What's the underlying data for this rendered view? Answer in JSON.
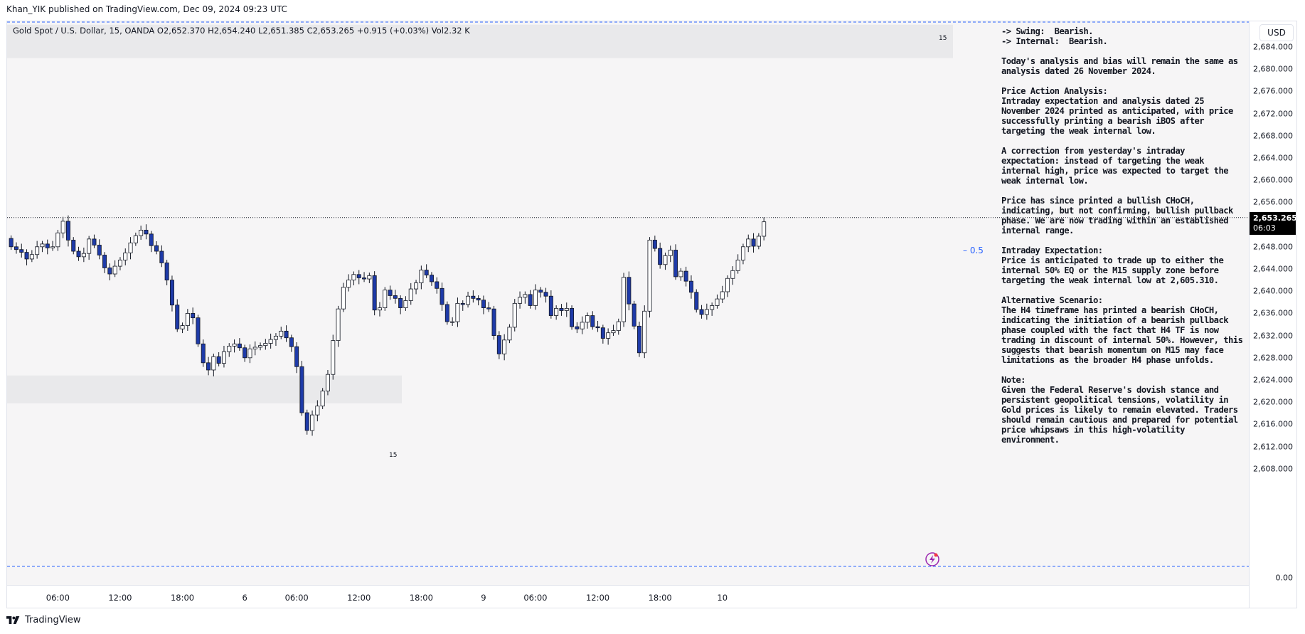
{
  "header": {
    "published": "Khan_YIK published on TradingView.com, Dec 09, 2024 09:23 UTC"
  },
  "symbol_line": "Gold Spot / U.S. Dollar, 15, OANDA  O2,652.370  H2,654.240  L2,651.385  C2,653.265  +0.915 (+0.03%)  Vol2.32 K",
  "currency": "USD",
  "last_price": {
    "price": "2,653.265",
    "countdown": "06:03"
  },
  "fib_label": "0.5",
  "zone_labels": [
    "15",
    "15"
  ],
  "footer": {
    "logo_text": "TradingView"
  },
  "colors": {
    "up": "#ffffff",
    "down": "#1e3aa8",
    "wick": "#131722",
    "zone": "#e9e9eb",
    "dashed": "#2962ff",
    "background": "#f6f5f6"
  },
  "analysis_text": "-> Swing:  Bearish.\n-> Internal:  Bearish.\n\nToday's analysis and bias will remain the same as analysis dated 26 November 2024.\n\nPrice Action Analysis:\nIntraday expectation and analysis dated 25 November 2024 printed as anticipated, with price successfully printing a bearish iBOS after targeting the weak internal low.\n\nA correction from yesterday's intraday expectation: instead of targeting the weak internal high, price was expected to target the weak internal low.\n\nPrice has since printed a bullish CHoCH, indicating, but not confirming, bullish pullback phase. We are now trading within an established internal range.\n\nIntraday Expectation:\nPrice is anticipated to trade up to either the internal 50% EQ or the M15 supply zone before targeting the weak internal low at 2,605.310.\n\nAlternative Scenario:\nThe H4 timeframe has printed a bearish CHoCH, indicating the initiation of a bearish pullback phase coupled with the fact that H4 TF is now trading in discount of internal 50%. However, this suggests that bearish momentum on M15 may face limitations as the broader H4 phase unfolds.\n\nNote:\nGiven the Federal Reserve's dovish stance and persistent geopolitical tensions, volatility in Gold prices is likely to remain elevated. Traders should remain cautious and prepared for potential price whipsaws in this high-volatility environment.",
  "chart_data": {
    "type": "candlestick",
    "title": "Gold Spot / U.S. Dollar, 15, OANDA",
    "y_ticks": [
      "2,684.000",
      "2,680.000",
      "2,676.000",
      "2,672.000",
      "2,668.000",
      "2,664.000",
      "2,660.000",
      "2,656.000",
      "2,652.000",
      "2,648.000",
      "2,644.000",
      "2,640.000",
      "2,636.000",
      "2,632.000",
      "2,628.000",
      "2,624.000",
      "2,620.000",
      "2,616.000",
      "2,612.000",
      "2,608.000"
    ],
    "y_tick_values": [
      2684,
      2680,
      2676,
      2672,
      2668,
      2664,
      2660,
      2656,
      2652,
      2648,
      2644,
      2640,
      2636,
      2632,
      2628,
      2624,
      2620,
      2616,
      2612,
      2608
    ],
    "y_extra_tick": "0.00",
    "ylim": [
      2604,
      2688
    ],
    "x_ticks": [
      "06:00",
      "12:00",
      "18:00",
      "6",
      "06:00",
      "12:00",
      "18:00",
      "9",
      "06:00",
      "12:00",
      "18:00",
      "10"
    ],
    "x_tick_bars": [
      9.5,
      21.5,
      33.5,
      45.5,
      55.5,
      67.5,
      79.5,
      91.5,
      101.5,
      113.5,
      125.5,
      137.5
    ],
    "last_price": 2653.265,
    "supply_zone": [
      2682.0,
      2688.0
    ],
    "demand_zone": [
      2619.8,
      2624.8
    ],
    "fib_level": 2647.2,
    "closes": [
      2648.0,
      2647.5,
      2647.0,
      2645.8,
      2646.6,
      2648.0,
      2648.5,
      2647.8,
      2648.0,
      2650.5,
      2652.6,
      2649.2,
      2647.2,
      2646.2,
      2646.8,
      2649.4,
      2648.3,
      2646.5,
      2644.2,
      2643.1,
      2644.5,
      2645.6,
      2646.9,
      2648.7,
      2650.0,
      2651.0,
      2650.3,
      2648.2,
      2647.2,
      2645.1,
      2642.0,
      2637.5,
      2633.2,
      2633.8,
      2636.0,
      2635.2,
      2630.5,
      2627.1,
      2625.8,
      2628.2,
      2627.0,
      2629.1,
      2630.1,
      2630.5,
      2629.8,
      2628.0,
      2629.6,
      2629.9,
      2630.2,
      2630.6,
      2631.3,
      2631.9,
      2632.8,
      2631.6,
      2630.0,
      2626.4,
      2618.1,
      2614.9,
      2617.7,
      2619.3,
      2622.0,
      2625.0,
      2631.1,
      2636.8,
      2640.7,
      2642.0,
      2643.0,
      2642.4,
      2642.2,
      2642.8,
      2636.6,
      2637.0,
      2640.2,
      2639.2,
      2638.7,
      2637.0,
      2638.3,
      2640.4,
      2641.5,
      2643.8,
      2642.9,
      2641.7,
      2640.5,
      2637.6,
      2634.5,
      2634.5,
      2637.8,
      2637.6,
      2639.1,
      2638.7,
      2638.4,
      2637.0,
      2636.8,
      2632.0,
      2628.7,
      2631.2,
      2633.5,
      2637.8,
      2638.9,
      2639.4,
      2637.4,
      2640.2,
      2639.8,
      2639.1,
      2635.6,
      2636.9,
      2636.5,
      2636.9,
      2633.6,
      2633.2,
      2634.4,
      2635.6,
      2633.6,
      2633.4,
      2631.5,
      2632.5,
      2632.9,
      2634.5,
      2642.5,
      2637.7,
      2633.7,
      2628.9,
      2636.4,
      2649.2,
      2647.7,
      2644.8,
      2646.4,
      2647.4,
      2642.6,
      2643.6,
      2641.8,
      2639.8,
      2636.7,
      2635.8,
      2636.7,
      2637.4,
      2638.6,
      2639.9,
      2642.3,
      2643.7,
      2645.6,
      2648.0,
      2649.4,
      2648.1,
      2649.9,
      2652.5
    ]
  }
}
